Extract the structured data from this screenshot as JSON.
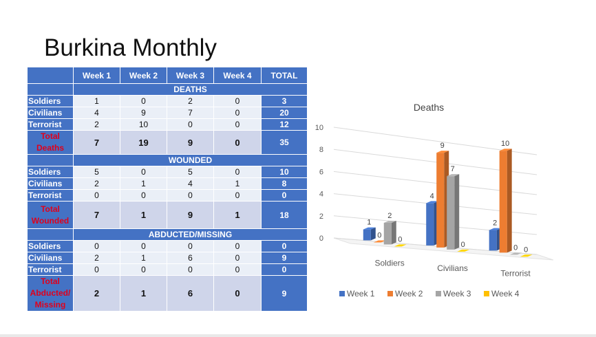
{
  "slide": {
    "title": "Burkina Monthly"
  },
  "table": {
    "columns": [
      "Week 1",
      "Week 2",
      "Week 3",
      "Week 4",
      "TOTAL"
    ],
    "sections": [
      {
        "title": "DEATHS",
        "rows": [
          {
            "label": "Soldiers",
            "values": [
              "1",
              "0",
              "2",
              "0"
            ],
            "total": "3"
          },
          {
            "label": "Civilians",
            "values": [
              "4",
              "9",
              "7",
              "0"
            ],
            "total": "20"
          },
          {
            "label": "Terrorist",
            "values": [
              "2",
              "10",
              "0",
              "0"
            ],
            "total": "12"
          }
        ],
        "total_row": {
          "label_lines": [
            "Total",
            "Deaths"
          ],
          "values": [
            "7",
            "19",
            "9",
            "0"
          ],
          "total": "35"
        }
      },
      {
        "title": "WOUNDED",
        "rows": [
          {
            "label": "Soldiers",
            "values": [
              "5",
              "0",
              "5",
              "0"
            ],
            "total": "10"
          },
          {
            "label": "Civilians",
            "values": [
              "2",
              "1",
              "4",
              "1"
            ],
            "total": "8"
          },
          {
            "label": "Terrorist",
            "values": [
              "0",
              "0",
              "0",
              "0"
            ],
            "total": "0"
          }
        ],
        "total_row": {
          "label_lines": [
            "Total",
            "Wounded"
          ],
          "values": [
            "7",
            "1",
            "9",
            "1"
          ],
          "total": "18"
        }
      },
      {
        "title": "ABDUCTED/MISSING",
        "rows": [
          {
            "label": "Soldiers",
            "values": [
              "0",
              "0",
              "0",
              "0"
            ],
            "total": "0"
          },
          {
            "label": "Civilians",
            "values": [
              "2",
              "1",
              "6",
              "0"
            ],
            "total": "9"
          },
          {
            "label": "Terrorist",
            "values": [
              "0",
              "0",
              "0",
              "0"
            ],
            "total": "0"
          }
        ],
        "total_row": {
          "label_lines": [
            "Total",
            "Abducted/",
            "Missing"
          ],
          "values": [
            "2",
            "1",
            "6",
            "0"
          ],
          "total": "9"
        }
      }
    ]
  },
  "colors": {
    "header_blue": "#4472c4",
    "row_light": "#eaeff7",
    "row_total": "#cfd5ea",
    "total_label_red": "#e0001b"
  },
  "chart_data": {
    "type": "bar",
    "title": "Deaths",
    "categories": [
      "Soldiers",
      "Civilians",
      "Terrorist"
    ],
    "series": [
      {
        "name": "Week 1",
        "values": [
          1,
          4,
          2
        ],
        "color": "#4472c4"
      },
      {
        "name": "Week 2",
        "values": [
          0,
          9,
          10
        ],
        "color": "#ed7d31"
      },
      {
        "name": "Week 3",
        "values": [
          2,
          7,
          0
        ],
        "color": "#a5a5a5"
      },
      {
        "name": "Week 4",
        "values": [
          0,
          0,
          0
        ],
        "color": "#ffc000"
      }
    ],
    "ylim": [
      0,
      10
    ],
    "y_ticks": [
      0,
      2,
      4,
      6,
      8,
      10
    ],
    "grid": true,
    "legend": "bottom",
    "style": "3d-clustered-column"
  }
}
